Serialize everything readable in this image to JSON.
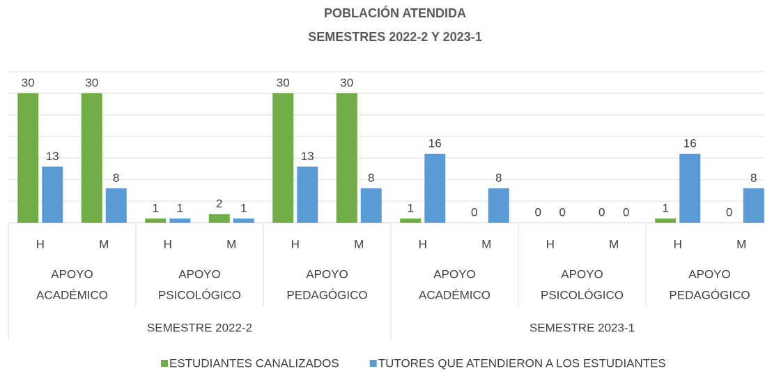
{
  "chart_data": {
    "type": "bar",
    "title": "POBLACIÓN ATENDIDA",
    "subtitle": "SEMESTRES 2022-2 Y 2023-1",
    "categories": [
      "H",
      "M",
      "H",
      "M",
      "H",
      "M",
      "H",
      "M",
      "H",
      "M",
      "H",
      "M"
    ],
    "subgroups": [
      [
        "APOYO",
        "ACADÉMICO"
      ],
      [
        "APOYO",
        "PSICOLÓGICO"
      ],
      [
        "APOYO",
        "PEDAGÓGICO"
      ],
      [
        "APOYO",
        "ACADÉMICO"
      ],
      [
        "APOYO",
        "PSICOLÓGICO"
      ],
      [
        "APOYO",
        "PEDAGÓGICO"
      ]
    ],
    "groups": [
      "SEMESTRE 2022-2",
      "SEMESTRE 2023-1"
    ],
    "series": [
      {
        "name": "ESTUDIANTES CANALIZADOS",
        "color": "#70ad47",
        "values": [
          30,
          30,
          1,
          2,
          30,
          30,
          1,
          0,
          0,
          0,
          1,
          0
        ]
      },
      {
        "name": "TUTORES QUE ATENDIERON A LOS ESTUDIANTES",
        "color": "#5b9bd5",
        "values": [
          13,
          8,
          1,
          1,
          13,
          8,
          16,
          8,
          0,
          0,
          16,
          8
        ]
      }
    ],
    "ylim": [
      0,
      35
    ],
    "yticks": [
      0,
      5,
      10,
      15,
      20,
      25,
      30,
      35
    ],
    "grid": true,
    "legend": "bottom"
  }
}
